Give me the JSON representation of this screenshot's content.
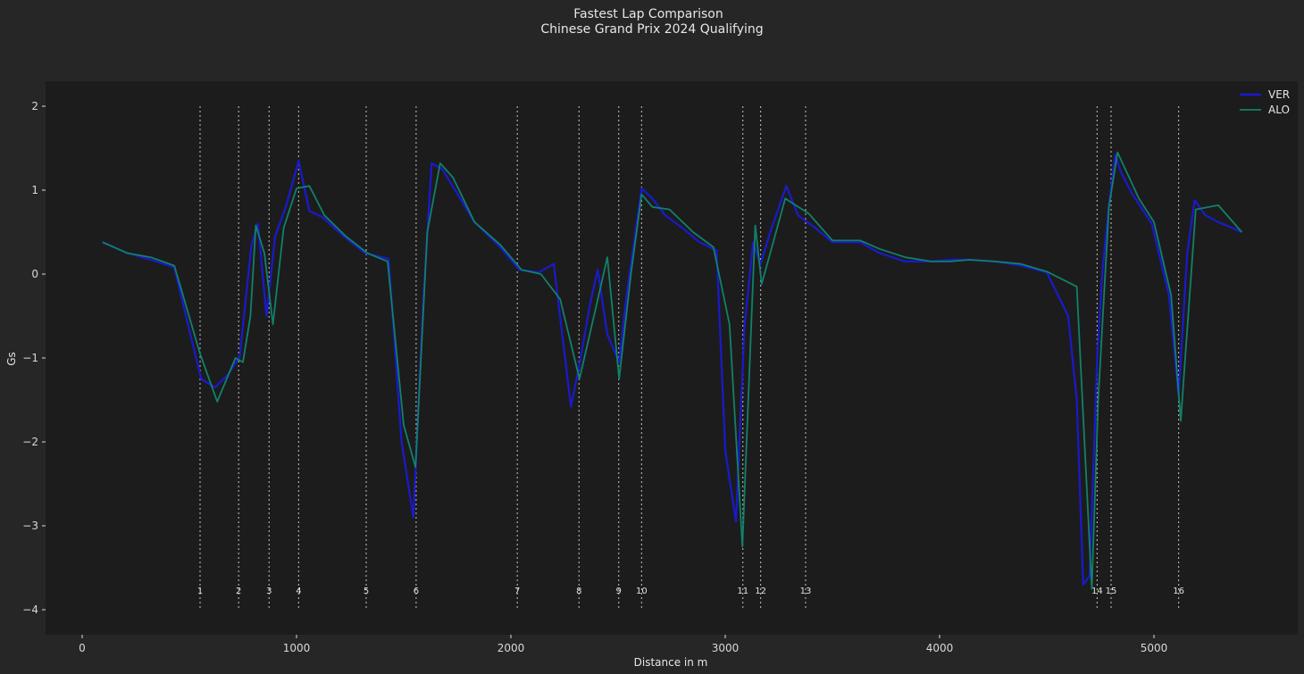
{
  "chart_data": {
    "type": "line",
    "title": "Fastest Lap Comparison",
    "subtitle": "Chinese Grand Prix 2024 Qualifying",
    "xlabel": "Distance in m",
    "ylabel": "Gs",
    "xlim": [
      -100,
      5570
    ],
    "ylim": [
      -4.3,
      2.3
    ],
    "x_ticks": [
      0,
      1000,
      2000,
      3000,
      4000,
      5000
    ],
    "y_ticks": [
      2,
      1,
      0,
      -1,
      -2,
      -3,
      -4
    ],
    "x_tick_labels": [
      "0",
      "1000",
      "2000",
      "3000",
      "4000",
      "5000"
    ],
    "y_tick_labels": [
      "2",
      "1",
      "0",
      "−1",
      "−2",
      "−3",
      "−4"
    ],
    "grid": false,
    "legend_position": "top-right",
    "colors": {
      "figure_bg": "#262626",
      "axes_bg": "#1c1c1c",
      "corner_line": "#a8a8a8"
    },
    "corners": [
      {
        "number": "1",
        "distance": 550
      },
      {
        "number": "2",
        "distance": 730
      },
      {
        "number": "3",
        "distance": 872
      },
      {
        "number": "4",
        "distance": 1010
      },
      {
        "number": "5",
        "distance": 1325
      },
      {
        "number": "6",
        "distance": 1558
      },
      {
        "number": "7",
        "distance": 2030
      },
      {
        "number": "8",
        "distance": 2318
      },
      {
        "number": "9",
        "distance": 2503
      },
      {
        "number": "10",
        "distance": 2610
      },
      {
        "number": "11",
        "distance": 3082
      },
      {
        "number": "12",
        "distance": 3165
      },
      {
        "number": "13",
        "distance": 3375
      },
      {
        "number": "14",
        "distance": 4735
      },
      {
        "number": "15",
        "distance": 4800
      },
      {
        "number": "16",
        "distance": 5115
      }
    ],
    "series": [
      {
        "name": "VER",
        "color": "#1a1acc",
        "x": [
          95,
          210,
          320,
          430,
          555,
          620,
          680,
          735,
          790,
          820,
          860,
          900,
          950,
          1010,
          1060,
          1120,
          1220,
          1320,
          1430,
          1490,
          1545,
          1590,
          1630,
          1680,
          1740,
          1830,
          1950,
          2040,
          2130,
          2200,
          2280,
          2320,
          2370,
          2405,
          2450,
          2505,
          2540,
          2610,
          2660,
          2720,
          2800,
          2880,
          2960,
          3000,
          3050,
          3090,
          3130,
          3165,
          3210,
          3285,
          3340,
          3420,
          3500,
          3630,
          3720,
          3840,
          3950,
          4050,
          4140,
          4260,
          4380,
          4500,
          4600,
          4640,
          4670,
          4700,
          4735,
          4760,
          4790,
          4820,
          4845,
          4900,
          4990,
          5070,
          5115,
          5155,
          5190,
          5240,
          5300,
          5410
        ],
        "y": [
          0.38,
          0.25,
          0.17,
          0.08,
          -1.25,
          -1.35,
          -1.2,
          -0.98,
          0.35,
          0.6,
          -0.5,
          0.45,
          0.8,
          1.35,
          0.75,
          0.68,
          0.45,
          0.25,
          0.18,
          -2.0,
          -2.9,
          -0.4,
          1.32,
          1.25,
          1.0,
          0.62,
          0.32,
          0.05,
          0.02,
          0.12,
          -1.58,
          -1.08,
          -0.35,
          0.05,
          -0.72,
          -1.05,
          -0.25,
          1.02,
          0.9,
          0.7,
          0.55,
          0.38,
          0.28,
          -2.1,
          -2.95,
          -0.62,
          0.38,
          0.12,
          0.5,
          1.05,
          0.7,
          0.55,
          0.38,
          0.38,
          0.25,
          0.15,
          0.15,
          0.17,
          0.17,
          0.15,
          0.1,
          0.02,
          -0.5,
          -1.5,
          -3.7,
          -3.6,
          -1.0,
          0.05,
          0.82,
          1.42,
          1.22,
          0.95,
          0.6,
          -0.25,
          -1.45,
          0.25,
          0.88,
          0.7,
          0.62,
          0.5
        ]
      },
      {
        "name": "ALO",
        "color": "#12806a",
        "x": [
          95,
          210,
          320,
          430,
          550,
          630,
          715,
          750,
          785,
          810,
          850,
          890,
          940,
          1000,
          1060,
          1130,
          1230,
          1330,
          1425,
          1500,
          1555,
          1610,
          1670,
          1730,
          1830,
          1950,
          2050,
          2140,
          2230,
          2320,
          2410,
          2450,
          2505,
          2560,
          2610,
          2660,
          2740,
          2850,
          2945,
          3020,
          3080,
          3140,
          3170,
          3280,
          3390,
          3500,
          3630,
          3720,
          3840,
          3960,
          4050,
          4140,
          4260,
          4380,
          4500,
          4640,
          4710,
          4740,
          4790,
          4830,
          4930,
          5000,
          5080,
          5125,
          5195,
          5300,
          5410
        ],
        "y": [
          0.38,
          0.25,
          0.2,
          0.1,
          -0.95,
          -1.52,
          -1.0,
          -1.05,
          -0.5,
          0.58,
          0.25,
          -0.6,
          0.55,
          1.02,
          1.05,
          0.7,
          0.45,
          0.25,
          0.15,
          -1.8,
          -2.3,
          0.5,
          1.32,
          1.15,
          0.62,
          0.35,
          0.05,
          0.0,
          -0.3,
          -1.25,
          -0.25,
          0.2,
          -1.25,
          0.0,
          0.95,
          0.8,
          0.77,
          0.5,
          0.32,
          -0.6,
          -3.25,
          0.58,
          -0.12,
          0.9,
          0.72,
          0.4,
          0.4,
          0.3,
          0.2,
          0.15,
          0.15,
          0.17,
          0.15,
          0.12,
          0.03,
          -0.15,
          -3.75,
          -1.5,
          0.8,
          1.45,
          0.9,
          0.62,
          -0.25,
          -1.75,
          0.77,
          0.82,
          0.5
        ]
      }
    ]
  }
}
